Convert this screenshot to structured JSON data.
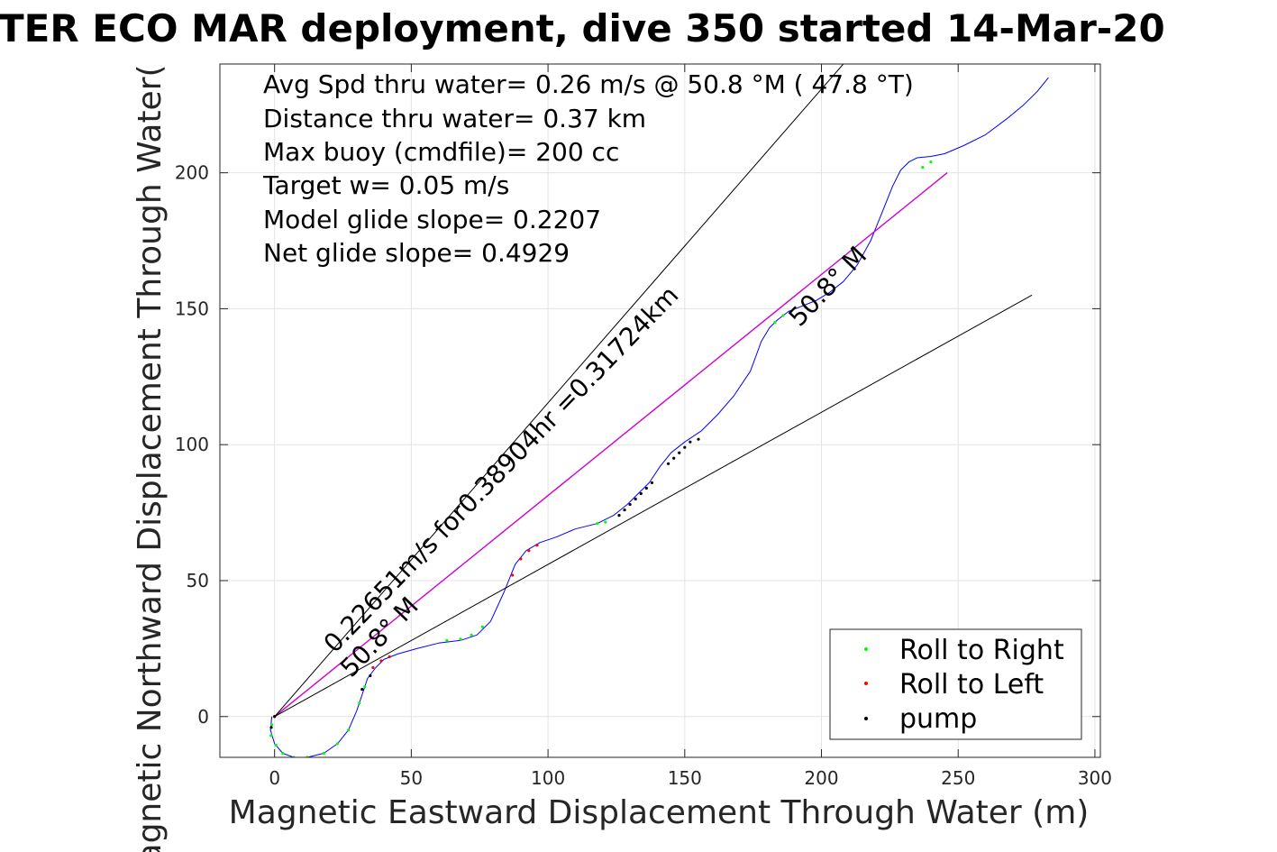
{
  "chart_data": {
    "type": "line",
    "title": "TER ECO MAR deployment, dive 350 started 14-Mar-20",
    "xlabel": "Magnetic Eastward Displacement Through Water (m)",
    "ylabel": "Magnetic Northward Displacement Through Water(",
    "xlim": [
      -20,
      302
    ],
    "ylim": [
      -15,
      240
    ],
    "xticks": [
      0,
      50,
      100,
      150,
      200,
      250,
      300
    ],
    "yticks": [
      0,
      50,
      100,
      150,
      200
    ],
    "grid": true,
    "legend_position": "bottom-right",
    "legend": [
      {
        "label": "Roll to Right",
        "color": "#00ff00"
      },
      {
        "label": "Roll to Left",
        "color": "#ff0000"
      },
      {
        "label": "pump",
        "color": "#000000"
      }
    ],
    "info_text": [
      "Avg Spd thru water=  0.26 m/s @  50.8 °M ( 47.8 °T)",
      "Distance thru water=  0.37 km",
      "Max buoy (cmdfile)= 200 cc",
      "Target w= 0.05 m/s",
      "Model glide slope= 0.2207",
      "Net glide slope= 0.4929"
    ],
    "annotations": [
      {
        "text": "0.22651m/s for0.38904hr =0.31724km",
        "x": 22,
        "y": 23,
        "angle": -46,
        "color": "#000000"
      },
      {
        "text": "50.8° M",
        "x": 28,
        "y": 14,
        "angle": -46,
        "color": "#000000"
      },
      {
        "text": "50.8° M",
        "x": 192,
        "y": 143,
        "angle": -46,
        "color": "#000000"
      }
    ],
    "series": [
      {
        "kind": "track",
        "color": "#0000ff",
        "x": [
          -1,
          -1.5,
          0,
          3,
          7,
          12,
          18,
          23,
          27,
          30,
          32,
          34,
          37,
          40,
          45,
          52,
          60,
          68,
          74,
          79,
          84,
          88,
          92,
          97,
          103,
          110,
          118,
          124,
          129,
          133,
          137,
          141,
          145,
          150,
          156,
          162,
          168,
          174,
          178,
          181,
          184,
          188,
          193,
          198,
          203,
          208,
          213,
          218,
          222,
          226,
          229,
          232,
          235,
          240,
          245,
          252,
          260,
          268,
          274,
          279,
          283
        ],
        "y": [
          0,
          -5,
          -10,
          -13.5,
          -15,
          -15,
          -13.5,
          -10,
          -5,
          2,
          8,
          14,
          18,
          21,
          23,
          25,
          27,
          28,
          30,
          35,
          46,
          56,
          61,
          64,
          66,
          69,
          71,
          74,
          78,
          82,
          86,
          92,
          97,
          101,
          105,
          111,
          118,
          127,
          138,
          143,
          146,
          149,
          151,
          153,
          156,
          160,
          166,
          175,
          185,
          195,
          201,
          204,
          205.5,
          206,
          207,
          210,
          214,
          220,
          225,
          230,
          235
        ]
      },
      {
        "kind": "model-heading",
        "color": "#d000d0",
        "x": [
          0,
          246
        ],
        "y": [
          0,
          200
        ]
      },
      {
        "kind": "envelope-upper",
        "color": "#000000",
        "x": [
          0,
          208
        ],
        "y": [
          0,
          240
        ]
      },
      {
        "kind": "envelope-lower",
        "color": "#000000",
        "x": [
          0,
          277
        ],
        "y": [
          0,
          155
        ]
      }
    ],
    "markers": {
      "roll_right": {
        "color": "#00ff00",
        "x": [
          -1,
          -1.3,
          0.5,
          3,
          7,
          12,
          18,
          23,
          27,
          31,
          33,
          63,
          68,
          72,
          76,
          118,
          121,
          183,
          186,
          237,
          240
        ],
        "y": [
          -3,
          -7,
          -10.5,
          -13.5,
          -15,
          -15,
          -13.5,
          -10,
          -5,
          5,
          11,
          28,
          28.5,
          30,
          33,
          71,
          71.5,
          145,
          147.5,
          202,
          204
        ]
      },
      "roll_left": {
        "color": "#ff0000",
        "x": [
          0,
          36,
          39,
          42,
          87,
          90,
          93,
          96
        ],
        "y": [
          0,
          18,
          20.5,
          22,
          52,
          58,
          61,
          63
        ]
      },
      "pump": {
        "color": "#000000",
        "x": [
          -1.2,
          0,
          32,
          35,
          126,
          128,
          130,
          132,
          134,
          136,
          138,
          144,
          146,
          148,
          150,
          152,
          155
        ],
        "y": [
          -4,
          0,
          10,
          15,
          74,
          76,
          78,
          80,
          82,
          84,
          86,
          93,
          95,
          97,
          99,
          101,
          102
        ]
      }
    }
  }
}
